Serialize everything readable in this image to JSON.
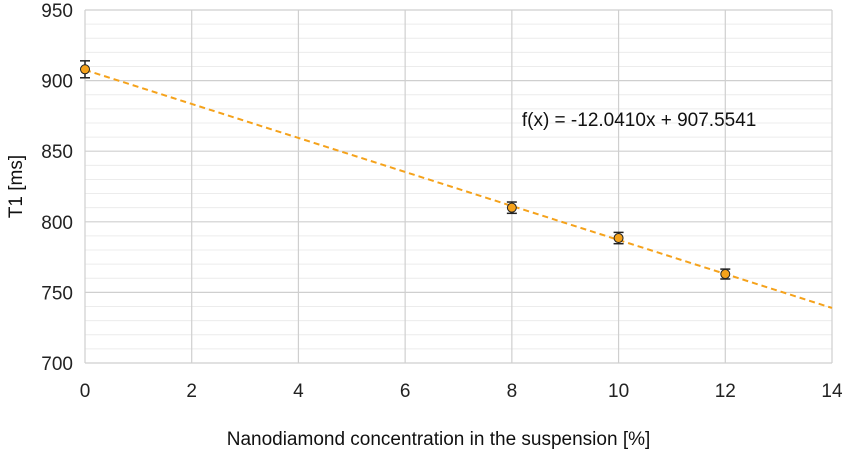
{
  "chart_data": {
    "type": "scatter",
    "xlabel": "Nanodiamond concentration in the suspension [%]",
    "ylabel": "T1 [ms]",
    "xlim": [
      0,
      14
    ],
    "ylim": [
      700,
      950
    ],
    "xticks": [
      0,
      2,
      4,
      6,
      8,
      10,
      12,
      14
    ],
    "yticks": [
      700,
      750,
      800,
      850,
      900,
      950
    ],
    "y_minor_step": 10,
    "grid": true,
    "points": [
      {
        "x": 0,
        "y": 908,
        "err": 6
      },
      {
        "x": 8,
        "y": 810,
        "err": 4
      },
      {
        "x": 10,
        "y": 788.5,
        "err": 4
      },
      {
        "x": 12,
        "y": 763,
        "err": 3.5
      }
    ],
    "trendline": {
      "slope": -12.041,
      "intercept": 907.5541,
      "x_range": [
        0,
        14
      ],
      "label": "f(x) = -12.0410x + 907.5541",
      "label_anchor": [
        8,
        872
      ]
    },
    "colors": {
      "marker": "#f5a21b",
      "marker_edge": "#222222",
      "trendline": "#f5a21b",
      "grid_major": "#cfcfcf",
      "grid_minor": "#ececec",
      "errorbar": "#222222"
    }
  }
}
